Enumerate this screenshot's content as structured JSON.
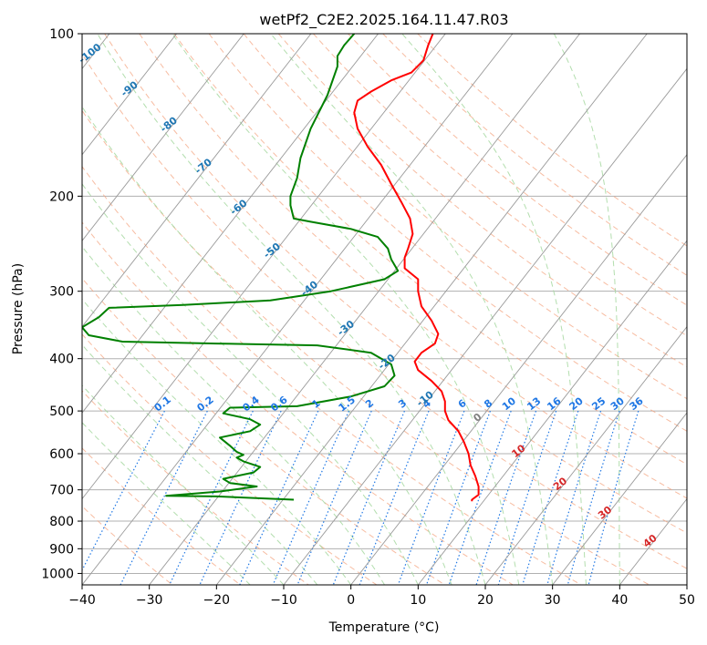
{
  "chart_data": {
    "type": "line",
    "title": "wetPf2_C2E2.2025.164.11.47.R03",
    "xlabel": "Temperature (°C)",
    "ylabel": "Pressure (hPa)",
    "xlim": [
      -40,
      50
    ],
    "ylim": [
      1050,
      100
    ],
    "y_scale": "log",
    "x_ticks": [
      -40,
      -30,
      -20,
      -10,
      0,
      10,
      20,
      30,
      40,
      50
    ],
    "y_ticks": [
      100,
      200,
      300,
      400,
      500,
      600,
      700,
      800,
      900,
      1000
    ],
    "grid": true,
    "series": [
      {
        "color": "#ff0000",
        "points": [
          [
            12.2,
            100
          ],
          [
            11.5,
            105
          ],
          [
            10.8,
            112
          ],
          [
            9.0,
            118
          ],
          [
            6.0,
            122
          ],
          [
            3.0,
            128
          ],
          [
            1.0,
            133
          ],
          [
            0.5,
            140
          ],
          [
            1.0,
            150
          ],
          [
            2.5,
            162
          ],
          [
            4.5,
            175
          ],
          [
            6.0,
            190
          ],
          [
            7.5,
            205
          ],
          [
            8.8,
            220
          ],
          [
            9.2,
            235
          ],
          [
            8.5,
            250
          ],
          [
            8.0,
            260
          ],
          [
            8.0,
            272
          ],
          [
            10.0,
            285
          ],
          [
            10.0,
            300
          ],
          [
            10.5,
            320
          ],
          [
            12.0,
            340
          ],
          [
            13.0,
            360
          ],
          [
            12.5,
            375
          ],
          [
            10.5,
            390
          ],
          [
            9.5,
            405
          ],
          [
            10.0,
            420
          ],
          [
            12.0,
            440
          ],
          [
            13.5,
            460
          ],
          [
            14.0,
            480
          ],
          [
            14.0,
            500
          ],
          [
            14.5,
            520
          ],
          [
            16.0,
            545
          ],
          [
            16.8,
            570
          ],
          [
            17.5,
            600
          ],
          [
            17.8,
            630
          ],
          [
            18.5,
            660
          ],
          [
            19.0,
            690
          ],
          [
            19.0,
            715
          ],
          [
            18.0,
            730
          ],
          [
            18.0,
            735
          ]
        ]
      },
      {
        "color": "#008000",
        "points": [
          [
            0.5,
            100
          ],
          [
            -1.0,
            105
          ],
          [
            -2.0,
            110
          ],
          [
            -2.0,
            115
          ],
          [
            -3.5,
            130
          ],
          [
            -6.0,
            150
          ],
          [
            -7.5,
            170
          ],
          [
            -8.0,
            185
          ],
          [
            -9.0,
            200
          ],
          [
            -9.0,
            208
          ],
          [
            -8.5,
            220
          ],
          [
            -6.0,
            223
          ],
          [
            0.0,
            230
          ],
          [
            4.0,
            238
          ],
          [
            5.5,
            250
          ],
          [
            6.0,
            262
          ],
          [
            7.0,
            275
          ],
          [
            5.0,
            285
          ],
          [
            -3.0,
            300
          ],
          [
            -12.0,
            312
          ],
          [
            -25.0,
            318
          ],
          [
            -36.0,
            322
          ],
          [
            -37.5,
            335
          ],
          [
            -40.0,
            350
          ],
          [
            -39.0,
            362
          ],
          [
            -34.0,
            372
          ],
          [
            -20.0,
            375
          ],
          [
            -5.0,
            378
          ],
          [
            3.0,
            390
          ],
          [
            6.0,
            410
          ],
          [
            6.5,
            430
          ],
          [
            5.0,
            450
          ],
          [
            0.0,
            470
          ],
          [
            -8.0,
            490
          ],
          [
            -18.0,
            493
          ],
          [
            -19.0,
            505
          ],
          [
            -15.0,
            518
          ],
          [
            -13.5,
            530
          ],
          [
            -15.0,
            545
          ],
          [
            -19.5,
            560
          ],
          [
            -18.0,
            580
          ],
          [
            -17.0,
            595
          ],
          [
            -16.0,
            603
          ],
          [
            -17.0,
            610
          ],
          [
            -16.0,
            620
          ],
          [
            -13.5,
            635
          ],
          [
            -14.5,
            650
          ],
          [
            -19.0,
            668
          ],
          [
            -18.0,
            680
          ],
          [
            -14.0,
            690
          ],
          [
            -19.5,
            705
          ],
          [
            -27.5,
            718
          ],
          [
            -20.0,
            720
          ],
          [
            -8.5,
            730
          ]
        ]
      }
    ],
    "dry_adiabats_C": [
      -30,
      -20,
      -10,
      0,
      10,
      20,
      30,
      40,
      50,
      60,
      70,
      80,
      90,
      100,
      110,
      120,
      130,
      140,
      150
    ],
    "moist_adiabats_C": [
      -15,
      -10,
      -5,
      0,
      5,
      10,
      15,
      20,
      25,
      30,
      35,
      40
    ],
    "mixing_ratio_lines_gkg": [
      "0.1",
      "0.2",
      "0.4",
      "0.6",
      "1",
      "1.5",
      "2",
      "3",
      "4",
      "6",
      "8",
      "10",
      "13",
      "16",
      "20",
      "25",
      "30",
      "36"
    ],
    "isotherm_labels_blue": [
      "-100",
      "-90",
      "-80",
      "-70",
      "-60",
      "-50",
      "-40",
      "-30",
      "-20",
      "-10"
    ],
    "isotherm_labels_red": [
      "10",
      "20",
      "30",
      "40"
    ],
    "isotherm_label_zero": "0",
    "colors": {
      "temperature": "#ff0000",
      "dewpoint": "#008000",
      "dry_adiabat": "#f4a582",
      "moist_adiabat": "#a6d8a0",
      "mixing_ratio": "#1f77e4",
      "isotherm": "#999999",
      "isotherm_label_blue": "#1f77b4",
      "isotherm_label_red": "#d62728"
    }
  }
}
